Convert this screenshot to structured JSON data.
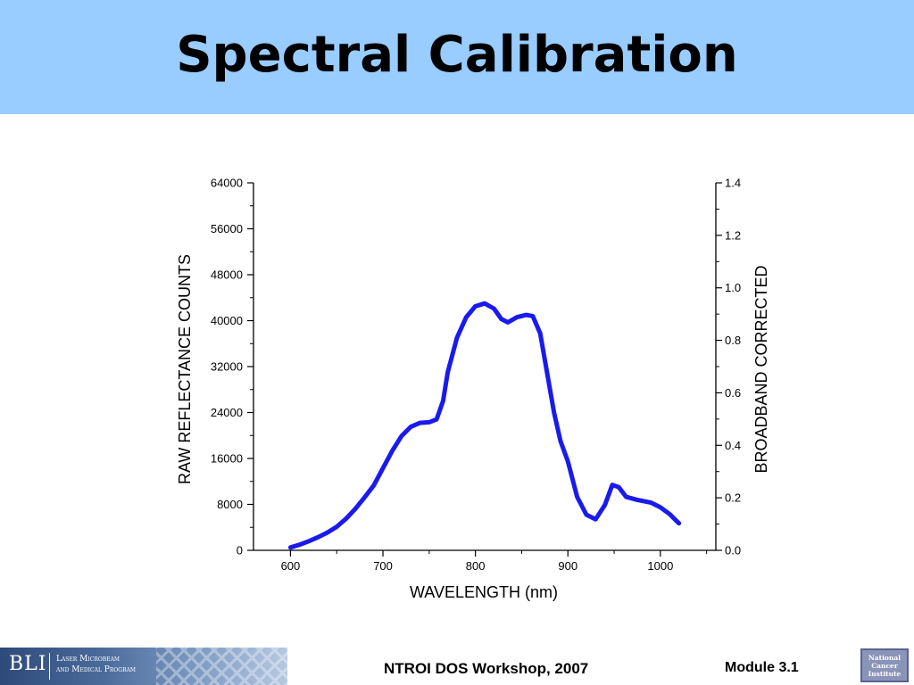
{
  "title": "Spectral Calibration",
  "footer": {
    "workshop": "NTROI DOS Workshop, 2007",
    "module": "Module 3.1",
    "bli_mark": "BLI",
    "bli_subtitle": "Laser Microbeam\nand Medical Program",
    "nci_text": "National\nCancer\nInstitute"
  },
  "colors": {
    "title_band": "#99ccff",
    "curve": "#1a1aee"
  },
  "chart_data": {
    "type": "line",
    "title": "",
    "xlabel": "WAVELENGTH (nm)",
    "ylabel_left": "RAW REFLECTANCE COUNTS",
    "ylabel_right": "BROADBAND CORRECTED",
    "xlim": [
      560,
      1060
    ],
    "ylim_left": [
      0,
      64000
    ],
    "ylim_right": [
      0.0,
      1.4
    ],
    "x_ticks": [
      "600",
      "700",
      "800",
      "900",
      "1000"
    ],
    "y_ticks_left": [
      "0",
      "8000",
      "16000",
      "24000",
      "32000",
      "40000",
      "48000",
      "56000",
      "64000"
    ],
    "y_ticks_right": [
      "0.0",
      "0.2",
      "0.4",
      "0.6",
      "0.8",
      "1.0",
      "1.2",
      "1.4"
    ],
    "grid": false,
    "series": [
      {
        "values": [
          [
            600,
            500
          ],
          [
            610,
            1000
          ],
          [
            620,
            1600
          ],
          [
            630,
            2300
          ],
          [
            640,
            3100
          ],
          [
            650,
            4100
          ],
          [
            660,
            5500
          ],
          [
            670,
            7200
          ],
          [
            680,
            9200
          ],
          [
            690,
            11300
          ],
          [
            700,
            14300
          ],
          [
            710,
            17300
          ],
          [
            720,
            19900
          ],
          [
            730,
            21500
          ],
          [
            740,
            22200
          ],
          [
            750,
            22300
          ],
          [
            758,
            22800
          ],
          [
            765,
            26000
          ],
          [
            770,
            31000
          ],
          [
            780,
            37000
          ],
          [
            790,
            40600
          ],
          [
            800,
            42500
          ],
          [
            810,
            43000
          ],
          [
            820,
            42100
          ],
          [
            828,
            40300
          ],
          [
            835,
            39700
          ],
          [
            845,
            40600
          ],
          [
            855,
            41000
          ],
          [
            862,
            40800
          ],
          [
            870,
            37800
          ],
          [
            878,
            30500
          ],
          [
            885,
            24000
          ],
          [
            892,
            19000
          ],
          [
            900,
            15500
          ],
          [
            910,
            9300
          ],
          [
            920,
            6200
          ],
          [
            930,
            5400
          ],
          [
            940,
            7900
          ],
          [
            948,
            11400
          ],
          [
            955,
            11000
          ],
          [
            963,
            9300
          ],
          [
            975,
            8800
          ],
          [
            990,
            8300
          ],
          [
            1000,
            7500
          ],
          [
            1010,
            6300
          ],
          [
            1020,
            4700
          ]
        ]
      }
    ]
  }
}
